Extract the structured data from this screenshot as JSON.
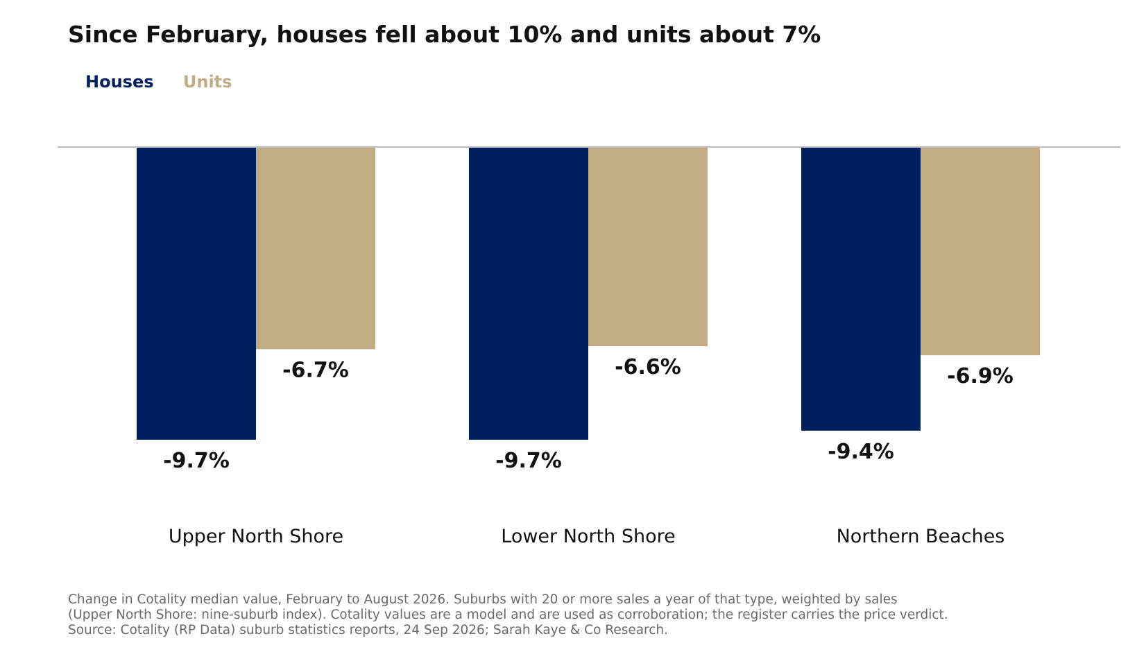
{
  "title": "Since February, houses fell about 10% and units about 7%",
  "legend": {
    "houses": "Houses",
    "units": "Units"
  },
  "colors": {
    "houses": "#001f5f",
    "units": "#c2ad84",
    "baseline": "#bbbbbb",
    "label": "#111111"
  },
  "chart_data": {
    "type": "bar",
    "categories": [
      "Upper North Shore",
      "Lower North Shore",
      "Northern Beaches"
    ],
    "series": [
      {
        "name": "Houses",
        "values": [
          -9.7,
          -9.7,
          -9.4
        ],
        "labels": [
          "-9.7%",
          "-9.7%",
          "-9.4%"
        ]
      },
      {
        "name": "Units",
        "values": [
          -6.7,
          -6.6,
          -6.9
        ],
        "labels": [
          "-6.7%",
          "-6.6%",
          "-6.9%"
        ]
      }
    ],
    "ylim": [
      -9.7,
      0
    ],
    "legend_position": "top-left",
    "grid": false
  },
  "footnote": {
    "line1": "Change in Cotality median value, February to August 2026. Suburbs with 20 or more sales a year of that type, weighted by sales",
    "line2": "(Upper North Shore: nine-suburb index). Cotality values are a model and are used as corroboration; the register carries the price verdict.",
    "line3": "Source: Cotality (RP Data) suburb statistics reports, 24 Sep 2026; Sarah Kaye & Co Research."
  }
}
